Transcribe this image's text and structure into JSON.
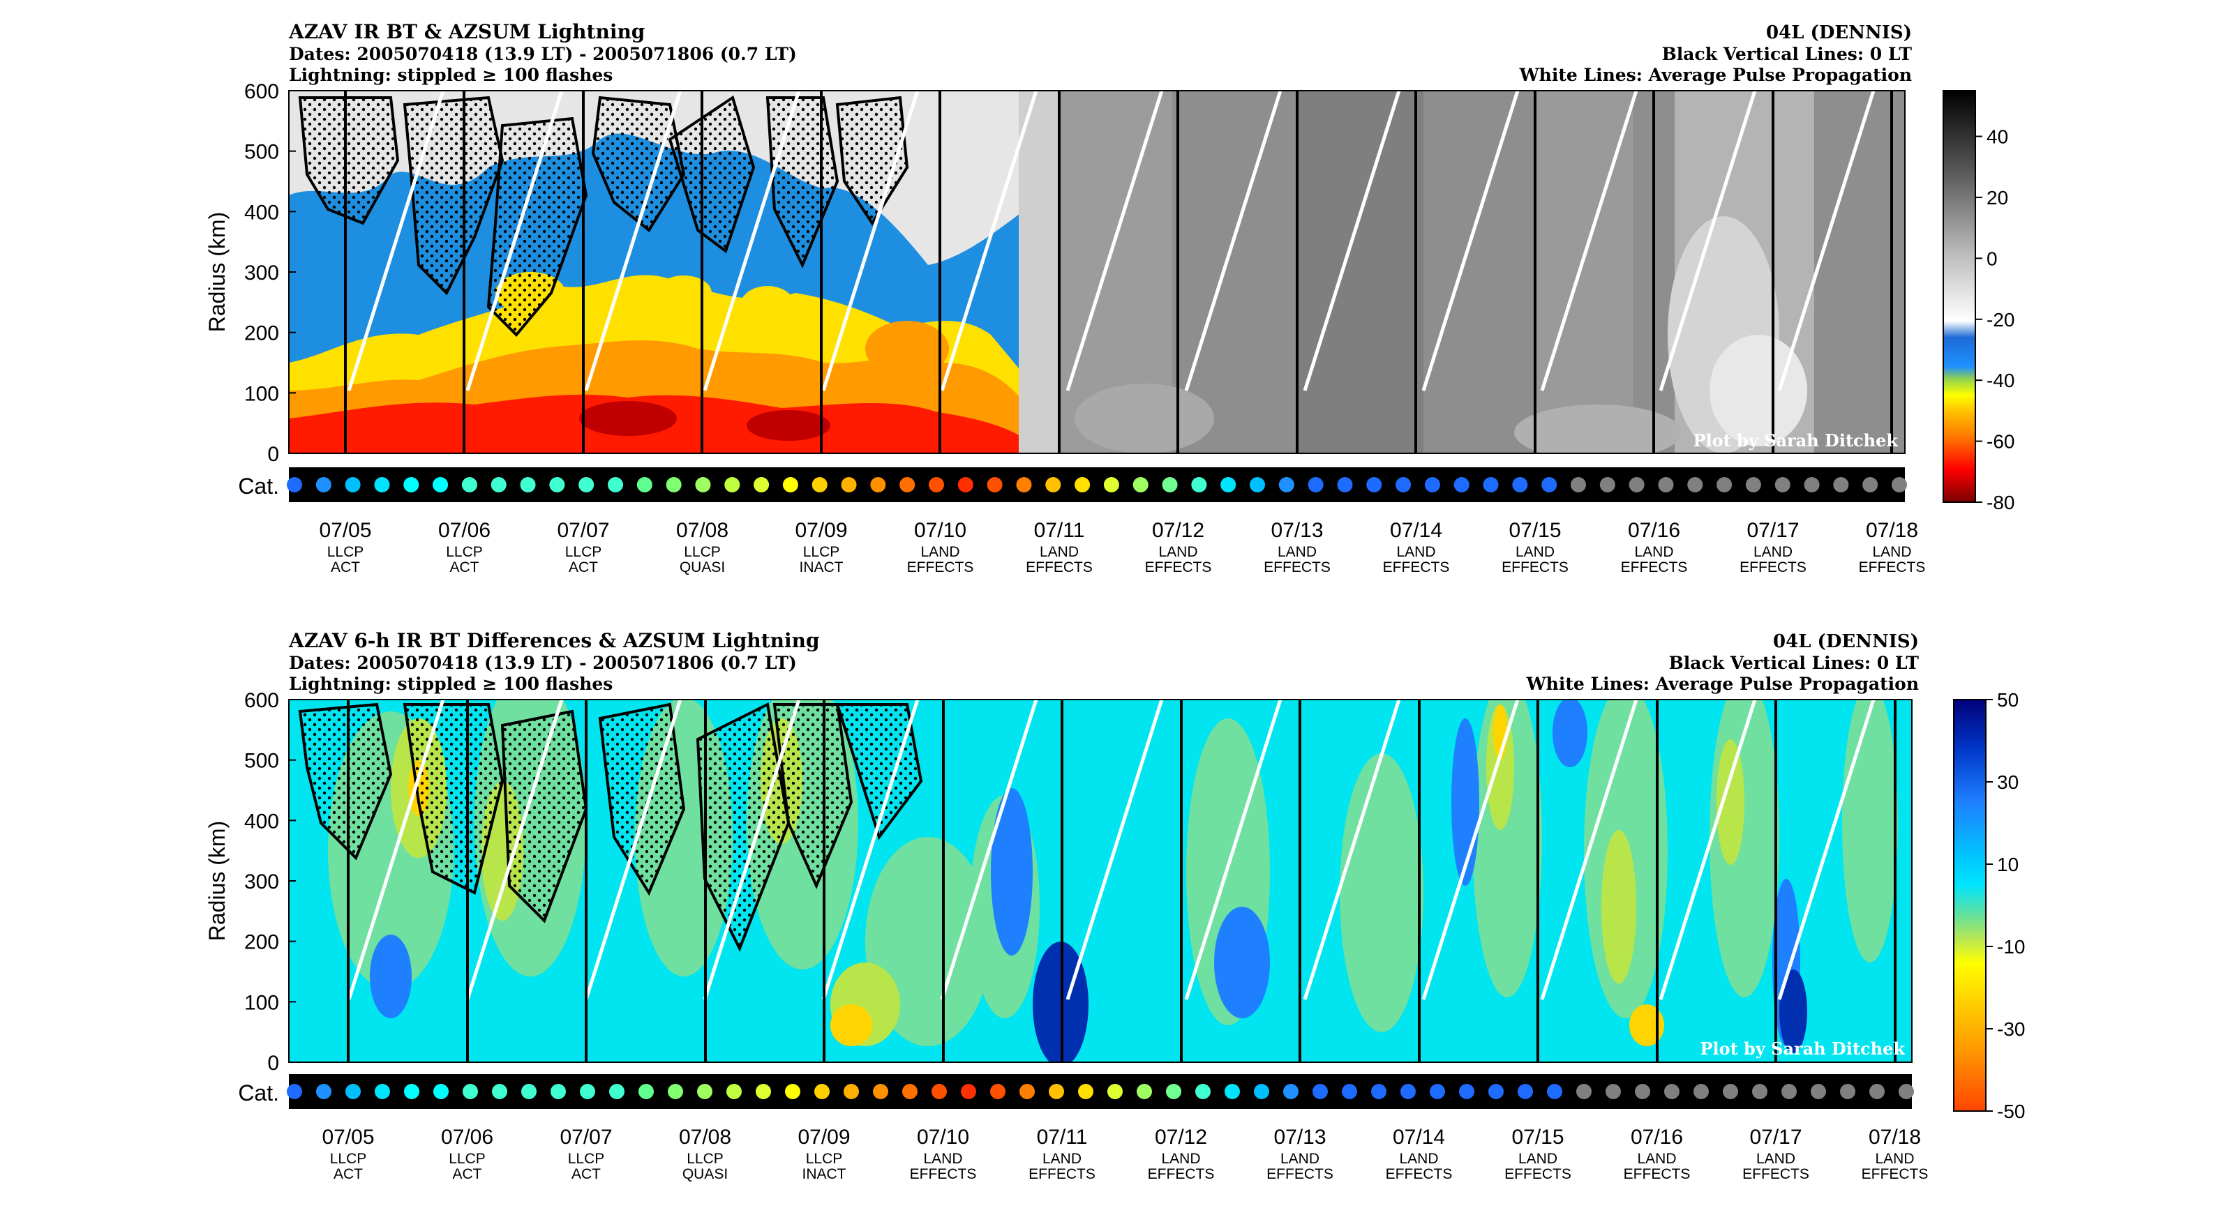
{
  "chart_data": [
    {
      "type": "heatmap",
      "title": "AZAV IR BT & AZSUM Lightning",
      "dates": "Dates: 2005070418 (13.9 LT) - 2005071806 (0.7 LT)",
      "lightning": "Lightning: stippled ≥ 100 flashes",
      "storm": "04L (DENNIS)",
      "black_lines": "Black Vertical Lines: 0 LT",
      "white_lines": "White Lines: Average Pulse Propagation",
      "ylabel": "Radius (km)",
      "ylim": [
        0,
        600
      ],
      "yticks": [
        "600",
        "500",
        "400",
        "300",
        "200",
        "100",
        "0"
      ],
      "cat_label": "Cat.",
      "credit": "Plot by Sarah Ditchek",
      "colorbar_ticks": [
        "40",
        "20",
        "0",
        "-20",
        "-40",
        "-60",
        "-80"
      ],
      "colorbar_range": [
        -80,
        55
      ],
      "colors": [
        "#ff0000",
        "#ffa500",
        "#ffff00",
        "#9acd32",
        "#1e90ff",
        "#d0d0d0",
        "#000000"
      ]
    },
    {
      "type": "heatmap",
      "title": "AZAV 6-h IR BT Differences & AZSUM Lightning",
      "dates": "Dates: 2005070418 (13.9 LT) - 2005071806 (0.7 LT)",
      "lightning": "Lightning: stippled ≥ 100 flashes",
      "storm": "04L (DENNIS)",
      "black_lines": "Black Vertical Lines: 0 LT",
      "white_lines": "White Lines: Average Pulse Propagation",
      "ylabel": "Radius (km)",
      "ylim": [
        0,
        600
      ],
      "yticks": [
        "600",
        "500",
        "400",
        "300",
        "200",
        "100",
        "0"
      ],
      "cat_label": "Cat.",
      "credit": "Plot by Sarah Ditchek",
      "colorbar_ticks": [
        "50",
        "30",
        "10",
        "-10",
        "-30",
        "-50"
      ],
      "colorbar_range": [
        -50,
        50
      ],
      "colors": [
        "#00ffff",
        "#7fffd4",
        "#adff2f",
        "#ffff00",
        "#ff8c00",
        "#1e90ff",
        "#00008b"
      ]
    }
  ],
  "dates": [
    {
      "date": "07/05",
      "l1": "LLCP",
      "l2": "ACT"
    },
    {
      "date": "07/06",
      "l1": "LLCP",
      "l2": "ACT"
    },
    {
      "date": "07/07",
      "l1": "LLCP",
      "l2": "ACT"
    },
    {
      "date": "07/08",
      "l1": "LLCP",
      "l2": "QUASI"
    },
    {
      "date": "07/09",
      "l1": "LLCP",
      "l2": "INACT"
    },
    {
      "date": "07/10",
      "l1": "LAND",
      "l2": "EFFECTS"
    },
    {
      "date": "07/11",
      "l1": "LAND",
      "l2": "EFFECTS"
    },
    {
      "date": "07/12",
      "l1": "LAND",
      "l2": "EFFECTS"
    },
    {
      "date": "07/13",
      "l1": "LAND",
      "l2": "EFFECTS"
    },
    {
      "date": "07/14",
      "l1": "LAND",
      "l2": "EFFECTS"
    },
    {
      "date": "07/15",
      "l1": "LAND",
      "l2": "EFFECTS"
    },
    {
      "date": "07/16",
      "l1": "LAND",
      "l2": "EFFECTS"
    },
    {
      "date": "07/17",
      "l1": "LAND",
      "l2": "EFFECTS"
    },
    {
      "date": "07/18",
      "l1": "LAND",
      "l2": "EFFECTS"
    }
  ],
  "category_dots": {
    "count": 56,
    "colors_top": [
      "#1e6bff",
      "#1e90ff",
      "#00bfff",
      "#00e5ff",
      "#00ffff",
      "#00ffff",
      "#40ffd0",
      "#40ffd0",
      "#40ffd0",
      "#40ffd0",
      "#40ffd0",
      "#40ffd0",
      "#60ff90",
      "#80ff70",
      "#a0ff60",
      "#c0ff40",
      "#e0ff30",
      "#ffff00",
      "#ffd000",
      "#ffb000",
      "#ff9000",
      "#ff7000",
      "#ff5000",
      "#ff3000",
      "#ff5000",
      "#ff8000",
      "#ffc000",
      "#ffe000",
      "#e0ff30",
      "#a0ff60",
      "#70ff90",
      "#40ffd0",
      "#00e5ff",
      "#00bfff",
      "#1e90ff",
      "#1e6bff",
      "#1e6bff",
      "#1e6bff",
      "#1e6bff",
      "#1e6bff",
      "#1e6bff",
      "#1e6bff",
      "#1e6bff",
      "#1e6bff",
      "#1e6bff",
      "#1e6bff",
      "#1e6bff",
      "#1e6bff",
      "#1e6bff",
      "#1e6bff",
      "#1e6bff",
      "#1e6bff",
      "#1e6bff",
      "#1e6bff",
      "#1e6bff",
      "#1e6bff"
    ],
    "gray_from": 44,
    "gray": "#808080"
  }
}
